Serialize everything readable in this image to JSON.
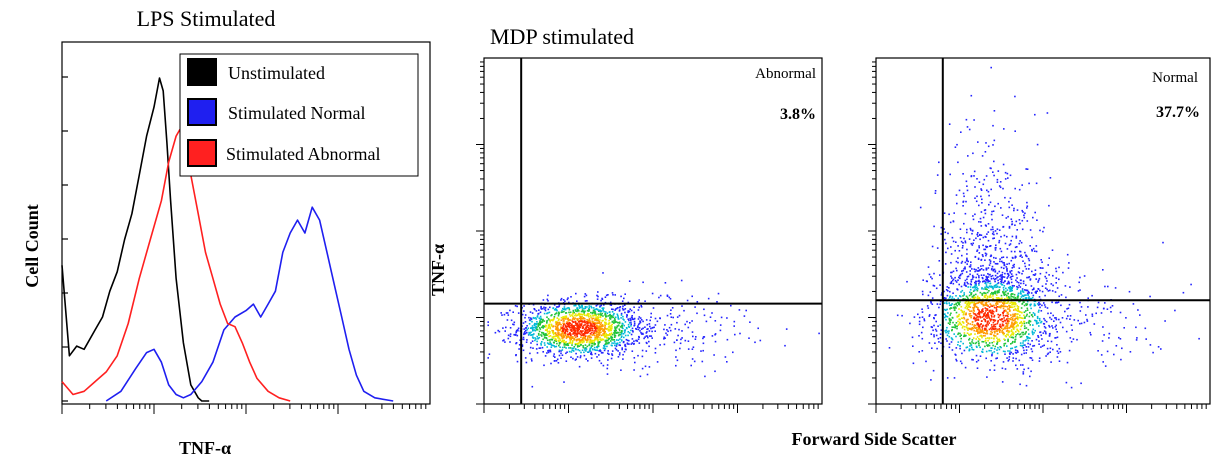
{
  "chart_data": [
    {
      "type": "line",
      "title": "LPS Stimulated",
      "xlabel": "TNF-α",
      "ylabel": "Cell Count",
      "legend_position": "top-right",
      "x_scale": "log",
      "ylim": [
        0,
        100
      ],
      "series": [
        {
          "name": "Unstimulated",
          "color": "#000000",
          "x": [
            0,
            0.02,
            0.04,
            0.06,
            0.09,
            0.11,
            0.13,
            0.15,
            0.17,
            0.19,
            0.21,
            0.23,
            0.25,
            0.265,
            0.275,
            0.285,
            0.295,
            0.31,
            0.33,
            0.35,
            0.37,
            0.38,
            0.4
          ],
          "y": [
            42,
            14,
            17,
            16,
            22,
            26,
            34,
            40,
            50,
            58,
            70,
            82,
            91,
            100,
            96,
            80,
            62,
            38,
            18,
            5,
            1,
            0,
            0
          ]
        },
        {
          "name": "Stimulated Normal",
          "color": "#1f1ff0",
          "x": [
            0.12,
            0.16,
            0.2,
            0.23,
            0.25,
            0.27,
            0.29,
            0.31,
            0.33,
            0.35,
            0.38,
            0.41,
            0.44,
            0.47,
            0.5,
            0.52,
            0.54,
            0.56,
            0.58,
            0.6,
            0.62,
            0.64,
            0.66,
            0.68,
            0.7,
            0.72,
            0.74,
            0.76,
            0.78,
            0.8,
            0.82,
            0.85,
            0.9
          ],
          "y": [
            0,
            3,
            10,
            15,
            16,
            12,
            5,
            2,
            1,
            2,
            6,
            12,
            22,
            26,
            28,
            30,
            26,
            30,
            34,
            46,
            52,
            56,
            52,
            60,
            56,
            46,
            36,
            26,
            16,
            8,
            3,
            1,
            0
          ]
        },
        {
          "name": "Stimulated Abnormal",
          "color": "#ff2020",
          "x": [
            0,
            0.03,
            0.06,
            0.09,
            0.12,
            0.15,
            0.18,
            0.21,
            0.24,
            0.27,
            0.29,
            0.31,
            0.32,
            0.33,
            0.35,
            0.37,
            0.39,
            0.41,
            0.43,
            0.45,
            0.47,
            0.49,
            0.51,
            0.53,
            0.56,
            0.59,
            0.62
          ],
          "y": [
            6,
            2,
            3,
            6,
            9,
            14,
            24,
            38,
            50,
            62,
            74,
            82,
            84,
            80,
            70,
            58,
            46,
            38,
            30,
            24,
            23,
            18,
            12,
            7,
            3,
            1,
            0
          ]
        }
      ]
    },
    {
      "type": "scatter",
      "title": "MDP stimulated",
      "ylabel": "TNF-α",
      "xlabel": "Forward Side Scatter",
      "panel_label": "Abnormal",
      "quadrant_percent": "3.8%",
      "gate": {
        "x": 0.11,
        "y": 0.29
      },
      "density_cluster": {
        "center": [
          0.28,
          0.22
        ],
        "spread": [
          0.09,
          0.04
        ],
        "events": 1600,
        "tail_events": 260
      }
    },
    {
      "type": "scatter",
      "panel_label": "Normal",
      "quadrant_percent": "37.7%",
      "gate": {
        "x": 0.2,
        "y": 0.3
      },
      "density_cluster": {
        "center": [
          0.34,
          0.25
        ],
        "spread": [
          0.09,
          0.06
        ],
        "events": 1300,
        "upper_events": 700,
        "tail_events": 220
      }
    }
  ]
}
